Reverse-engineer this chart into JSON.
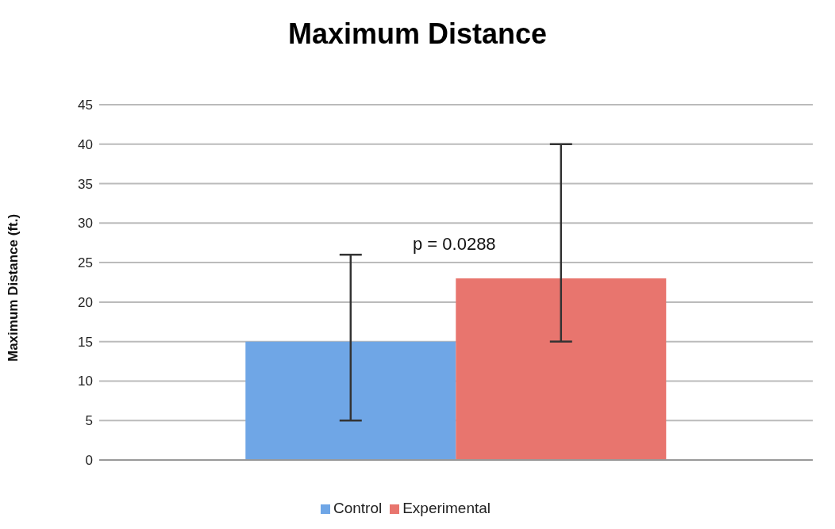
{
  "chart_data": {
    "type": "bar",
    "title": "Maximum Distance",
    "ylabel": "Maximum Distance (ft.)",
    "categories": [
      null
    ],
    "series": [
      {
        "name": "Control",
        "color": "#6fa6e6",
        "values": [
          15
        ],
        "errors": [
          [
            5,
            26
          ]
        ]
      },
      {
        "name": "Experimental",
        "color": "#e8756e",
        "values": [
          23
        ],
        "errors": [
          [
            15,
            40
          ]
        ]
      }
    ],
    "ylim": [
      0,
      45
    ],
    "yticks": [
      0,
      5,
      10,
      15,
      20,
      25,
      30,
      35,
      40,
      45
    ],
    "grid": "y",
    "legend": "bottom",
    "annotations": [
      "p = 0.0288"
    ]
  }
}
